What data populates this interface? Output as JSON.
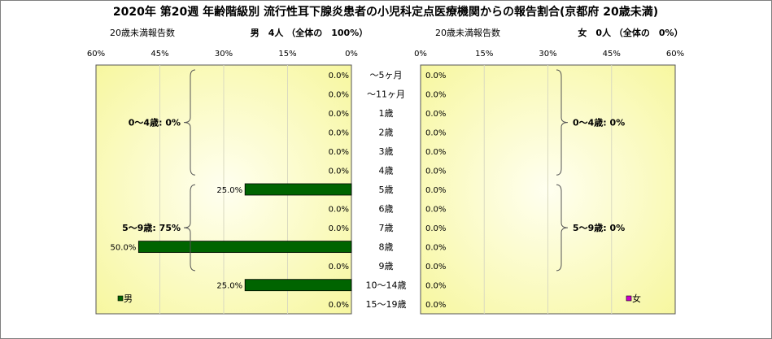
{
  "title": "2020年 第20週 年齢階級別 流行性耳下腺炎患者の小児科定点医療機関からの報告割合(京都府 20歳未満)",
  "colors": {
    "male_bar": "#006400",
    "female_marker": "#cc00cc",
    "plot_center": "#fffff0",
    "plot_edge": "#f7f7a0",
    "grid": "#d9d9c0"
  },
  "chart_data": [
    {
      "type": "bar",
      "orientation": "horizontal",
      "direction": "right-to-left",
      "panel": "male",
      "left_caption": "20歳未満報告数",
      "right_caption": "男　4人 （全体の　100%）",
      "xlim": [
        0,
        60
      ],
      "xticks": [
        "60%",
        "45%",
        "30%",
        "15%",
        "0%"
      ],
      "tick_values": [
        60,
        45,
        30,
        15,
        0
      ],
      "series": [
        {
          "name": "男",
          "values": [
            0,
            0,
            0,
            0,
            0,
            0,
            25,
            0,
            0,
            50,
            0,
            25,
            0
          ],
          "labels": [
            "0.0%",
            "0.0%",
            "0.0%",
            "0.0%",
            "0.0%",
            "0.0%",
            "25.0%",
            "0.0%",
            "0.0%",
            "50.0%",
            "0.0%",
            "25.0%",
            "0.0%"
          ]
        }
      ],
      "groups": [
        {
          "label": "0～4歳: 0%",
          "from": 0,
          "to": 5
        },
        {
          "label": "5～9歳: 75%",
          "from": 6,
          "to": 10
        }
      ],
      "legend": "bottom-left"
    },
    {
      "type": "bar",
      "orientation": "horizontal",
      "direction": "left-to-right",
      "panel": "female",
      "left_caption": "20歳未満報告数",
      "right_caption": "女　0人 （全体の　0%）",
      "xlim": [
        0,
        60
      ],
      "xticks": [
        "0%",
        "15%",
        "30%",
        "45%",
        "60%"
      ],
      "tick_values": [
        0,
        15,
        30,
        45,
        60
      ],
      "series": [
        {
          "name": "女",
          "values": [
            0,
            0,
            0,
            0,
            0,
            0,
            0,
            0,
            0,
            0,
            0,
            0,
            0
          ],
          "labels": [
            "0.0%",
            "0.0%",
            "0.0%",
            "0.0%",
            "0.0%",
            "0.0%",
            "0.0%",
            "0.0%",
            "0.0%",
            "0.0%",
            "0.0%",
            "0.0%",
            "0.0%"
          ]
        }
      ],
      "groups": [
        {
          "label": "0～4歳: 0%",
          "from": 0,
          "to": 5
        },
        {
          "label": "5～9歳: 0%",
          "from": 6,
          "to": 10
        }
      ],
      "legend": "bottom-right"
    }
  ],
  "categories": [
    "～5ヶ月",
    "～11ヶ月",
    "1歳",
    "2歳",
    "3歳",
    "4歳",
    "5歳",
    "6歳",
    "7歳",
    "8歳",
    "9歳",
    "10～14歳",
    "15～19歳"
  ]
}
